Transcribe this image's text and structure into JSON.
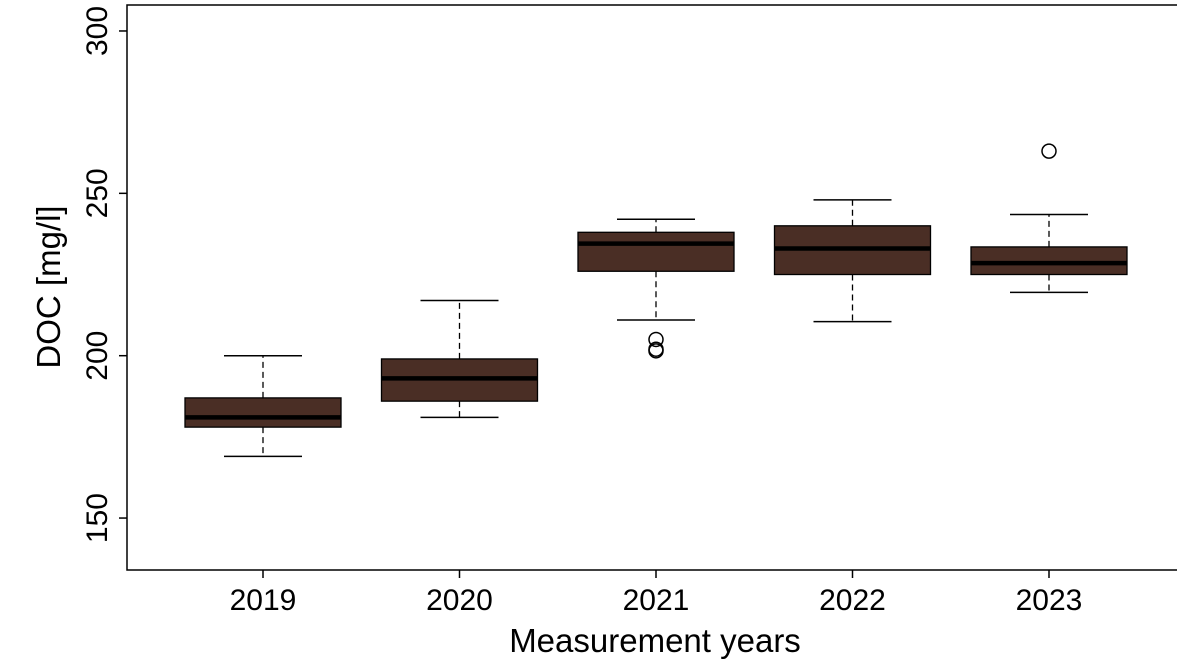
{
  "chart_data": {
    "type": "boxplot",
    "title": "",
    "xlabel": "Measurement years",
    "ylabel": "DOC [mg/l]",
    "ylim": [
      134,
      308
    ],
    "yticks": [
      150,
      200,
      250,
      300
    ],
    "ytick_labels": [
      "150",
      "200",
      "250",
      "300"
    ],
    "grid": false,
    "box_color": "#4a2e25",
    "categories": [
      "2019",
      "2020",
      "2021",
      "2022",
      "2023"
    ],
    "boxes": [
      {
        "category": "2019",
        "whisker_low": 169,
        "q1": 178,
        "median": 181,
        "q3": 187,
        "whisker_high": 200,
        "outliers": []
      },
      {
        "category": "2020",
        "whisker_low": 181,
        "q1": 186,
        "median": 193,
        "q3": 199,
        "whisker_high": 217,
        "outliers": []
      },
      {
        "category": "2021",
        "whisker_low": 211,
        "q1": 226,
        "median": 234.5,
        "q3": 238,
        "whisker_high": 242,
        "outliers": [
          205,
          202,
          201.5
        ]
      },
      {
        "category": "2022",
        "whisker_low": 210.5,
        "q1": 225,
        "median": 233,
        "q3": 240,
        "whisker_high": 248,
        "outliers": []
      },
      {
        "category": "2023",
        "whisker_low": 219.5,
        "q1": 225,
        "median": 228.5,
        "q3": 233.5,
        "whisker_high": 243.5,
        "outliers": [
          263
        ]
      }
    ]
  }
}
